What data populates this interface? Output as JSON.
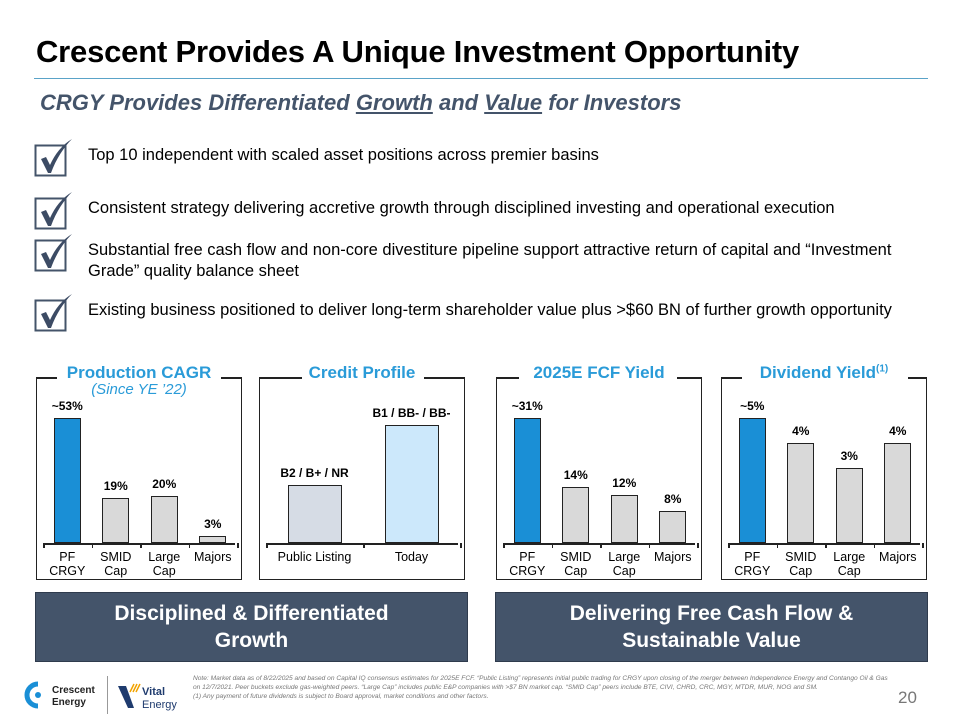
{
  "header": {
    "title": "Crescent Provides A Unique Investment Opportunity",
    "subtitle": {
      "part1": "CRGY Provides Differentiated ",
      "growth": "Growth",
      "part2": " and ",
      "value": "Value",
      "part3": " for Investors"
    }
  },
  "bullets": [
    {
      "icon": "checkbox-checked-icon",
      "text": "Top 10 independent with scaled asset positions across premier basins"
    },
    {
      "icon": "checkbox-checked-icon",
      "text": "Consistent strategy delivering accretive growth through disciplined investing and operational execution"
    },
    {
      "icon": "checkbox-checked-icon",
      "text": "Substantial free cash flow and non-core divestiture pipeline support attractive return of capital and “Investment Grade” quality balance sheet"
    },
    {
      "icon": "checkbox-checked-icon",
      "text": "Existing business positioned to deliver long-term shareholder value plus >$60 BN of further growth opportunity"
    }
  ],
  "colors": {
    "highlight": "#1a8fd6",
    "peer": "#d9d9d9",
    "credit_before": "#d6dce5",
    "credit_today": "#cce8fb",
    "heading": "#2a9bd8",
    "banner": "#44546a"
  },
  "chart_data": [
    {
      "type": "bar",
      "title": "Production CAGR",
      "subtitle": "(Since YE ’22)",
      "categories": [
        "PF\nCRGY",
        "SMID\nCap",
        "Large\nCap",
        "Majors"
      ],
      "values": [
        53,
        19,
        20,
        3
      ],
      "labels": [
        "~53%",
        "19%",
        "20%",
        "3%"
      ],
      "highlight": [
        true,
        false,
        false,
        false
      ],
      "ylim": [
        0,
        53
      ]
    },
    {
      "type": "bar",
      "title": "Credit Profile",
      "categories": [
        "Public Listing",
        "Today"
      ],
      "labels": [
        "B2 / B+ / NR",
        "B1 / BB- / BB-"
      ],
      "rank": [
        1,
        2
      ]
    },
    {
      "type": "bar",
      "title": "2025E FCF Yield",
      "categories": [
        "PF\nCRGY",
        "SMID\nCap",
        "Large\nCap",
        "Majors"
      ],
      "values": [
        31,
        14,
        12,
        8
      ],
      "labels": [
        "~31%",
        "14%",
        "12%",
        "8%"
      ],
      "highlight": [
        true,
        false,
        false,
        false
      ],
      "ylim": [
        0,
        31
      ]
    },
    {
      "type": "bar",
      "title": "Dividend Yield",
      "title_sup": "(1)",
      "categories": [
        "PF\nCRGY",
        "SMID\nCap",
        "Large\nCap",
        "Majors"
      ],
      "values": [
        5,
        4,
        3,
        4
      ],
      "labels": [
        "~5%",
        "4%",
        "3%",
        "4%"
      ],
      "highlight": [
        true,
        false,
        false,
        false
      ],
      "ylim": [
        0,
        5
      ]
    }
  ],
  "banners": {
    "left": "Disciplined & Differentiated\nGrowth",
    "right": "Delivering Free Cash Flow &\nSustainable Value"
  },
  "footer": {
    "note": "Note: Market data as of 8/22/2025 and based on Capital IQ consensus estimates for 2025E FCF. “Public Listing” represents initial public trading for CRGY upon closing of the merger between Independence Energy and Contango Oil & Gas on 12/7/2021. Peer buckets exclude gas-weighted peers. “Large Cap” includes public E&P companies with >$7 BN market cap. “SMID Cap” peers include BTE, CIVI, CHRD, CRC, MGY, MTDR, MUR, NOG and SM.",
    "footnote": "(1)      Any payment of future dividends is subject to Board approval, market conditions and other factors.",
    "logo1": "Crescent Energy",
    "logo2": "Vital Energy",
    "page": "20"
  }
}
